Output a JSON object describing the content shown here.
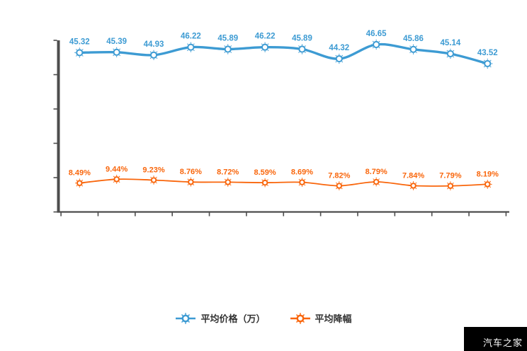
{
  "chart_data": {
    "type": "line",
    "title": "",
    "xlabel": "",
    "ylabel": "",
    "x_tick_labels": [],
    "grid": false,
    "legend_position": "bottom",
    "axes": {
      "y_tick_count": 6,
      "x_tick_count": 13,
      "tick_labels_visible": false,
      "axis_color": "#4d4d4d"
    },
    "series": [
      {
        "name": "平均价格（万）",
        "color": "#3d9bd3",
        "values": [
          45.32,
          45.39,
          44.93,
          46.22,
          45.89,
          46.22,
          45.89,
          44.32,
          46.65,
          45.86,
          45.14,
          43.52
        ],
        "labels": [
          "45.32",
          "45.39",
          "44.93",
          "46.22",
          "45.89",
          "46.22",
          "45.89",
          "44.32",
          "46.65",
          "45.86",
          "45.14",
          "43.52"
        ]
      },
      {
        "name": "平均降幅",
        "color": "#f9660c",
        "values": [
          8.49,
          9.44,
          9.23,
          8.76,
          8.72,
          8.59,
          8.69,
          7.82,
          8.79,
          7.84,
          7.79,
          8.19
        ],
        "labels": [
          "8.49%",
          "9.44%",
          "9.23%",
          "8.76%",
          "8.72%",
          "8.59%",
          "8.69%",
          "7.82%",
          "8.79%",
          "7.84%",
          "7.79%",
          "8.19%"
        ]
      }
    ]
  },
  "legend": {
    "items": [
      {
        "label": "平均价格（万）",
        "color": "#3d9bd3"
      },
      {
        "label": "平均降幅",
        "color": "#f9660c"
      }
    ]
  },
  "watermark": {
    "text": "汽车之家",
    "bg": "#000000",
    "fg": "#ffffff"
  }
}
